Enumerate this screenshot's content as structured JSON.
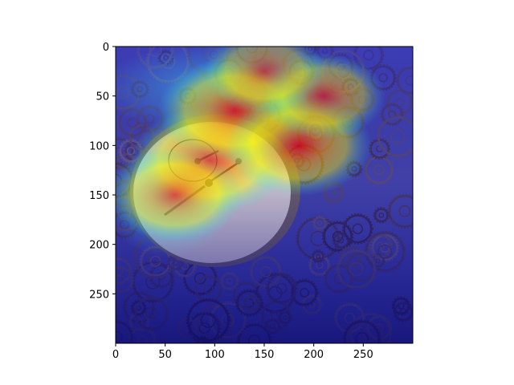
{
  "chart_data": {
    "type": "heatmap",
    "title": "",
    "xlabel": "",
    "ylabel": "",
    "xlim": [
      0,
      300
    ],
    "ylim": [
      300,
      0
    ],
    "x_ticks": [
      0,
      50,
      100,
      150,
      200,
      250
    ],
    "y_ticks": [
      0,
      50,
      100,
      150,
      200,
      250
    ],
    "grid": false,
    "colormap": "jet",
    "image_description": "stopwatch on pile of clock gears with heatmap overlay",
    "hotspots": [
      {
        "x": 95,
        "y": 115,
        "intensity": 1.0
      },
      {
        "x": 120,
        "y": 65,
        "intensity": 0.95
      },
      {
        "x": 185,
        "y": 100,
        "intensity": 0.85
      },
      {
        "x": 60,
        "y": 150,
        "intensity": 0.7
      },
      {
        "x": 210,
        "y": 50,
        "intensity": 0.55
      },
      {
        "x": 150,
        "y": 25,
        "intensity": 0.5
      }
    ]
  },
  "colors": {
    "jet_low": "#00008f",
    "jet_mid": "#00ffff",
    "jet_high": "#ff0000",
    "gear_dark": "#2a2a38",
    "dial_face": "#f3e8d4"
  }
}
